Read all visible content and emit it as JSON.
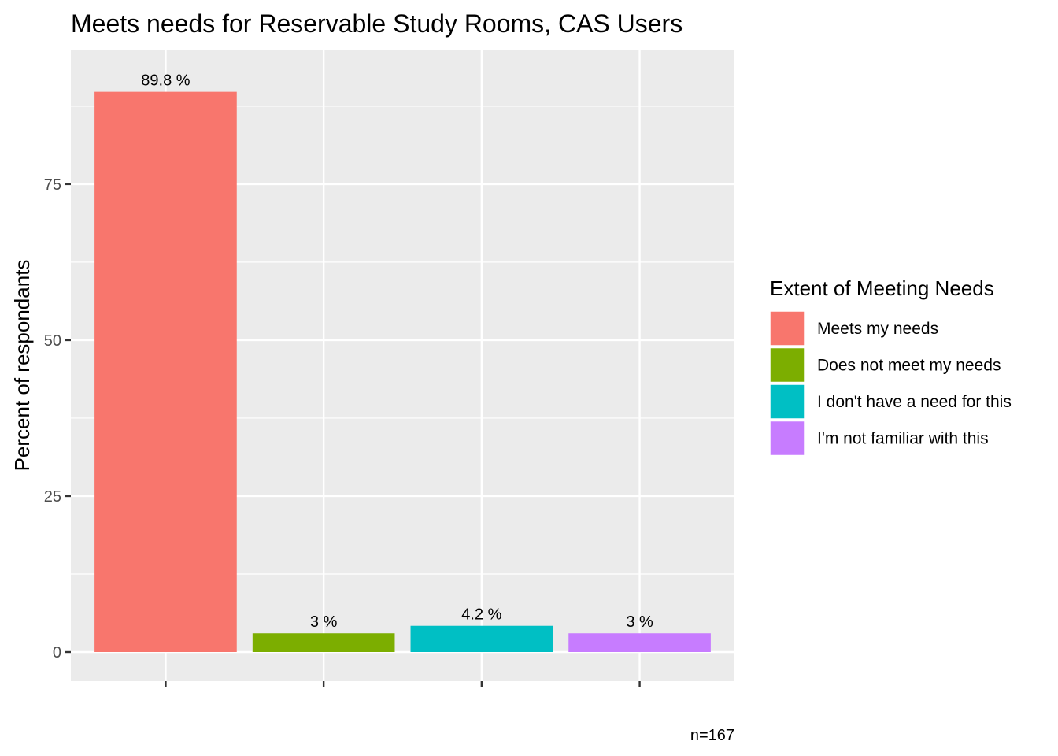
{
  "chart_data": {
    "type": "bar",
    "title": "Meets needs for Reservable Study Rooms, CAS Users",
    "xlabel": "",
    "ylabel": "Percent of respondants",
    "ylim": [
      0,
      94.3
    ],
    "yticks": [
      0,
      25,
      50,
      75
    ],
    "categories": [
      "Meets my needs",
      "Does not meet my needs",
      "I don't have a need for this",
      "I'm not familiar with this"
    ],
    "values": [
      89.8,
      3,
      4.2,
      3
    ],
    "data_labels": [
      "89.8 %",
      "3 %",
      "4.2 %",
      "3 %"
    ],
    "colors": [
      "#F8766D",
      "#7CAE00",
      "#00BFC4",
      "#C77CFF"
    ],
    "grid": true,
    "panel_background": "#EBEBEB",
    "legend": {
      "title": "Extent of Meeting Needs",
      "position": "right"
    },
    "caption": "n=167"
  }
}
